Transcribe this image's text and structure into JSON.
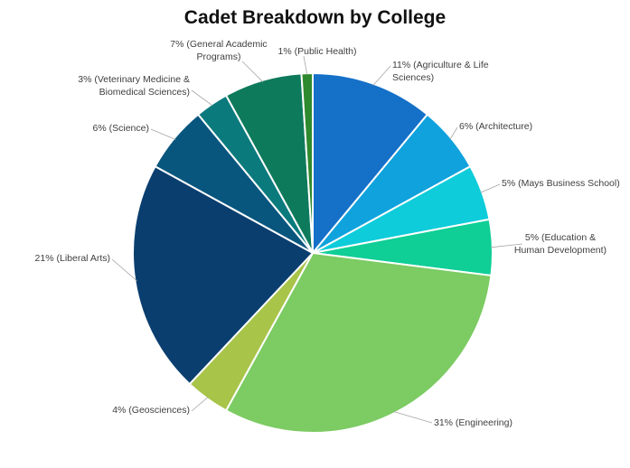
{
  "chart_data": {
    "type": "pie",
    "title": "Cadet Breakdown by College",
    "slices": [
      {
        "label": "11% (Agriculture & Life Sciences)",
        "lines": [
          "11% (Agriculture & Life",
          "Sciences)"
        ],
        "value": 11,
        "color": "#1570C8"
      },
      {
        "label": "6% (Architecture)",
        "lines": [
          "6% (Architecture)"
        ],
        "value": 6,
        "color": "#0FA2DC"
      },
      {
        "label": "5% (Mays Business School)",
        "lines": [
          "5% (Mays Business School)"
        ],
        "value": 5,
        "color": "#0ECCDA"
      },
      {
        "label": "5% (Education & Human Development)",
        "lines": [
          "5% (Education &",
          "Human Development)"
        ],
        "value": 5,
        "color": "#0FCE96"
      },
      {
        "label": "31% (Engineering)",
        "lines": [
          "31% (Engineering)"
        ],
        "value": 31,
        "color": "#7CCB63"
      },
      {
        "label": "4% (Geosciences)",
        "lines": [
          "4% (Geosciences)"
        ],
        "value": 4,
        "color": "#A8C449"
      },
      {
        "label": "21% (Liberal Arts)",
        "lines": [
          "21% (Liberal Arts)"
        ],
        "value": 21,
        "color": "#0A3E6F"
      },
      {
        "label": "6% (Science)",
        "lines": [
          "6% (Science)"
        ],
        "value": 6,
        "color": "#08567E"
      },
      {
        "label": "3% (Veterinary Medicine & Biomedical Sciences)",
        "lines": [
          "3% (Veterinary Medicine &",
          "Biomedical Sciences)"
        ],
        "value": 3,
        "color": "#0A7A7D"
      },
      {
        "label": "7% (General Academic Programs)",
        "lines": [
          "7% (General Academic",
          "Programs)"
        ],
        "value": 7,
        "color": "#0E7A5C"
      },
      {
        "label": "1% (Public Health)",
        "lines": [
          "1% (Public Health)"
        ],
        "value": 1,
        "color": "#2E8A2E"
      }
    ]
  }
}
